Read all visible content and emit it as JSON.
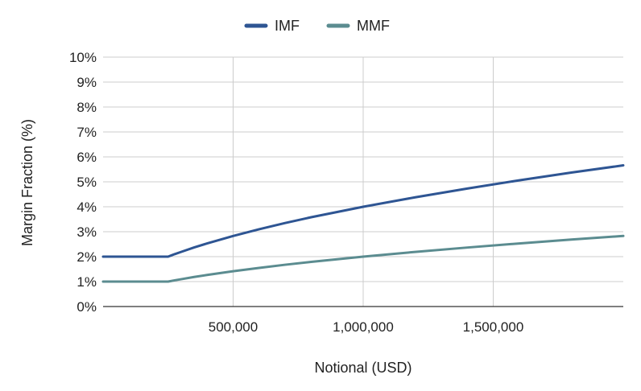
{
  "chart_data": {
    "type": "line",
    "title": "",
    "xlabel": "Notional (USD)",
    "ylabel": "Margin Fraction (%)",
    "xlim": [
      0,
      2000000
    ],
    "ylim": [
      0,
      10
    ],
    "x_ticks": [
      500000,
      1000000,
      1500000
    ],
    "x_tick_labels": [
      "500,000",
      "1,000,000",
      "1,500,000"
    ],
    "y_ticks": [
      0,
      1,
      2,
      3,
      4,
      5,
      6,
      7,
      8,
      9,
      10
    ],
    "y_tick_labels": [
      "0%",
      "1%",
      "2%",
      "3%",
      "4%",
      "5%",
      "6%",
      "7%",
      "8%",
      "9%",
      "10%"
    ],
    "grid": true,
    "legend_position": "top-center",
    "series": [
      {
        "name": "IMF",
        "color": "#2e5593",
        "x": [
          0,
          250000,
          262500,
          275000,
          300000,
          350000,
          400000,
          500000,
          600000,
          700000,
          800000,
          900000,
          1000000,
          1200000,
          1400000,
          1600000,
          1800000,
          2000000
        ],
        "y": [
          2,
          2,
          2.05,
          2.1,
          2.19,
          2.37,
          2.53,
          2.83,
          3.1,
          3.35,
          3.58,
          3.79,
          4.0,
          4.38,
          4.73,
          5.06,
          5.37,
          5.66
        ]
      },
      {
        "name": "MMF",
        "color": "#5b8c90",
        "x": [
          0,
          250000,
          262500,
          275000,
          300000,
          350000,
          400000,
          500000,
          600000,
          700000,
          800000,
          900000,
          1000000,
          1200000,
          1400000,
          1600000,
          1800000,
          2000000
        ],
        "y": [
          1,
          1,
          1.025,
          1.05,
          1.095,
          1.185,
          1.265,
          1.415,
          1.55,
          1.675,
          1.79,
          1.895,
          2.0,
          2.19,
          2.365,
          2.53,
          2.685,
          2.83
        ]
      }
    ]
  }
}
